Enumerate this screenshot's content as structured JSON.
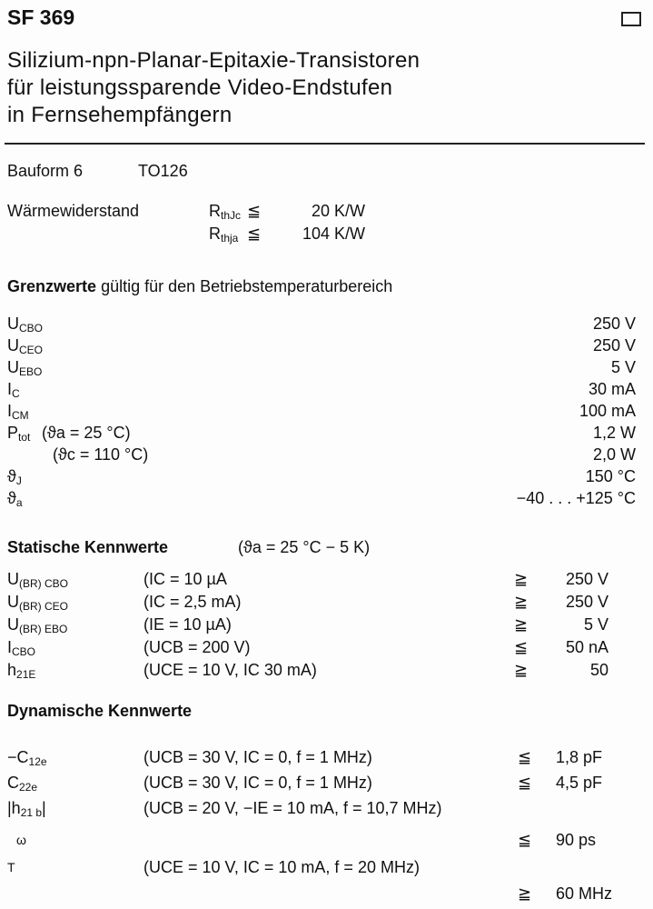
{
  "header": {
    "title": "SF 369",
    "subtitle": [
      "Silizium-npn-Planar-Epitaxie-Transistoren",
      "für leistungssparende Video-Endstufen",
      "in Fernsehempfängern"
    ]
  },
  "package": {
    "label": "Bauform 6",
    "type": "TO126"
  },
  "thermal": {
    "label": "Wärmewiderstand",
    "rows": [
      {
        "sym": "R",
        "sub": "thJc",
        "rel": "≦",
        "value": "20 K/W"
      },
      {
        "sym": "R",
        "sub": "thja",
        "rel": "≦",
        "value": "104 K/W"
      }
    ]
  },
  "limits": {
    "heading": "Grenzwerte",
    "heading_rest": "gültig für den Betriebstemperaturbereich",
    "rows": [
      {
        "sym": "U",
        "sub": "CBO",
        "cond": "",
        "value": "250 V"
      },
      {
        "sym": "U",
        "sub": "CEO",
        "cond": "",
        "value": "250 V"
      },
      {
        "sym": "U",
        "sub": "EBO",
        "cond": "",
        "value": "5 V"
      },
      {
        "sym": "I",
        "sub": "C",
        "cond": "",
        "value": "30 mA"
      },
      {
        "sym": "I",
        "sub": "CM",
        "cond": "",
        "value": "100 mA"
      },
      {
        "sym": "P",
        "sub": "tot",
        "cond": "(ϑa = 25 °C)",
        "value": "1,2 W"
      },
      {
        "sym": "",
        "sub": "",
        "cond": "(ϑc = 110 °C)",
        "value": "2,0 W"
      },
      {
        "sym": "ϑ",
        "sub": "J",
        "cond": "",
        "value": "150 °C"
      },
      {
        "sym": "ϑ",
        "sub": "a",
        "cond": "",
        "value": "−40 . . . +125 °C"
      }
    ]
  },
  "static": {
    "heading": "Statische Kennwerte",
    "cond": "(ϑa = 25 °C − 5 K)",
    "rows": [
      {
        "sym": "U",
        "sub": "(BR) CBO",
        "cond": "(IC = 10 µA",
        "rel": "≧",
        "value": "250 V"
      },
      {
        "sym": "U",
        "sub": "(BR) CEO",
        "cond": "(IC = 2,5 mA)",
        "rel": "≧",
        "value": "250 V"
      },
      {
        "sym": "U",
        "sub": "(BR) EBO",
        "cond": "(IE = 10 µA)",
        "rel": "≧",
        "value": "5 V"
      },
      {
        "sym": "I",
        "sub": "CBO",
        "cond": "(UCB = 200 V)",
        "rel": "≦",
        "value": "50 nA"
      },
      {
        "sym": "h",
        "sub": "21E",
        "cond": "(UCE = 10 V, IC 30 mA)",
        "rel": "≧",
        "value": "50"
      }
    ]
  },
  "dynamic": {
    "heading": "Dynamische Kennwerte",
    "rows": [
      {
        "sym": "−C",
        "sub": "12e",
        "cond": "(UCB = 30 V,   IC = 0, f = 1 MHz)",
        "rel": "≦",
        "value": "1,8 pF"
      },
      {
        "sym": "C",
        "sub": "22e",
        "cond": "(UCB = 30 V,   IC = 0, f = 1 MHz)",
        "rel": "≦",
        "value": "4,5 pF"
      },
      {
        "sym": "|h",
        "sub": "21 b",
        "sym2": "|",
        "cond": "(UCB = 20 V,  −IE = 10 mA, f = 10,7 MHz)",
        "rel": "",
        "value": ""
      },
      {
        "sym": "ω",
        "sub": "",
        "cond": "",
        "rel": "≦",
        "value": "90 ps"
      },
      {
        "sym": "T",
        "sub": "",
        "cond": "(UCE = 10 V, IC = 10 mA, f = 20 MHz)",
        "rel": "",
        "value": ""
      },
      {
        "sym": "",
        "sub": "",
        "cond": "",
        "rel": "≧",
        "value": "60 MHz"
      }
    ]
  }
}
